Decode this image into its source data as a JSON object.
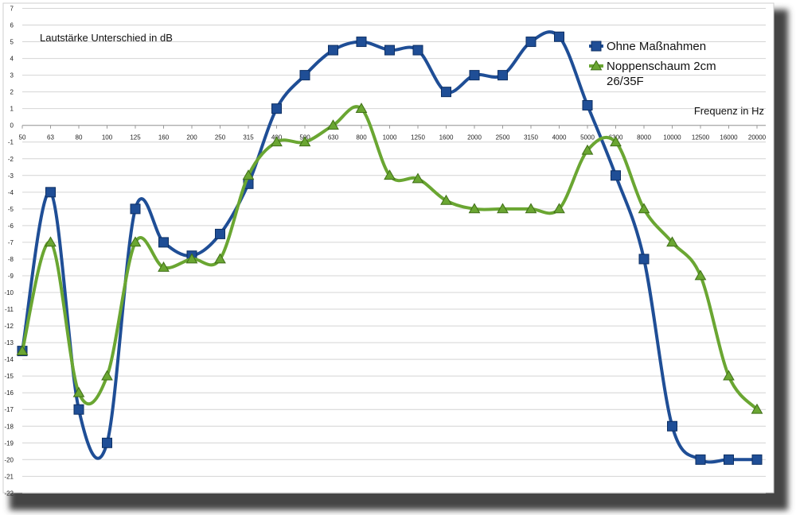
{
  "chart_data": {
    "type": "line",
    "annotation": "Lautstärke Unterschied in dB",
    "xlabel": "Frequenz in Hz",
    "categories": [
      "50",
      "63",
      "80",
      "100",
      "125",
      "160",
      "200",
      "250",
      "315",
      "400",
      "500",
      "630",
      "800",
      "1000",
      "1250",
      "1600",
      "2000",
      "2500",
      "3150",
      "4000",
      "5000",
      "6300",
      "8000",
      "10000",
      "12500",
      "16000",
      "20000"
    ],
    "ylim": [
      -22,
      7
    ],
    "yticks": [
      "-22",
      "-21",
      "-20",
      "-19",
      "-18",
      "-17",
      "-16",
      "-15",
      "-14",
      "-13",
      "-12",
      "-11",
      "-10",
      "-9",
      "-8",
      "-7",
      "-6",
      "-5",
      "-4",
      "-3",
      "-2",
      "-1",
      "0",
      "1",
      "2",
      "3",
      "4",
      "5",
      "6",
      "7"
    ],
    "grid": "horizontal",
    "legend_position": "top-right",
    "series": [
      {
        "name": "Ohne Maßnahmen",
        "color": "#1f4e96",
        "marker": "square",
        "values": [
          -13.5,
          -4,
          -17,
          -19,
          -5,
          -7,
          -7.8,
          -6.5,
          -3.5,
          1,
          3,
          4.5,
          5,
          4.5,
          4.5,
          2,
          3,
          3,
          5,
          5.3,
          1.2,
          -3,
          -8,
          -18,
          -20,
          -20,
          -20
        ]
      },
      {
        "name": "Noppenschaum 2cm 26/35F",
        "color": "#6aa632",
        "marker": "triangle",
        "values": [
          -13.5,
          -7,
          -16,
          -15,
          -7,
          -8.5,
          -8,
          -8,
          -3,
          -1,
          -1,
          0,
          1,
          -3,
          -3.2,
          -4.5,
          -5,
          -5,
          -5,
          -5,
          -1.5,
          -1,
          -5,
          -7,
          -9,
          -15,
          -17
        ]
      }
    ]
  }
}
